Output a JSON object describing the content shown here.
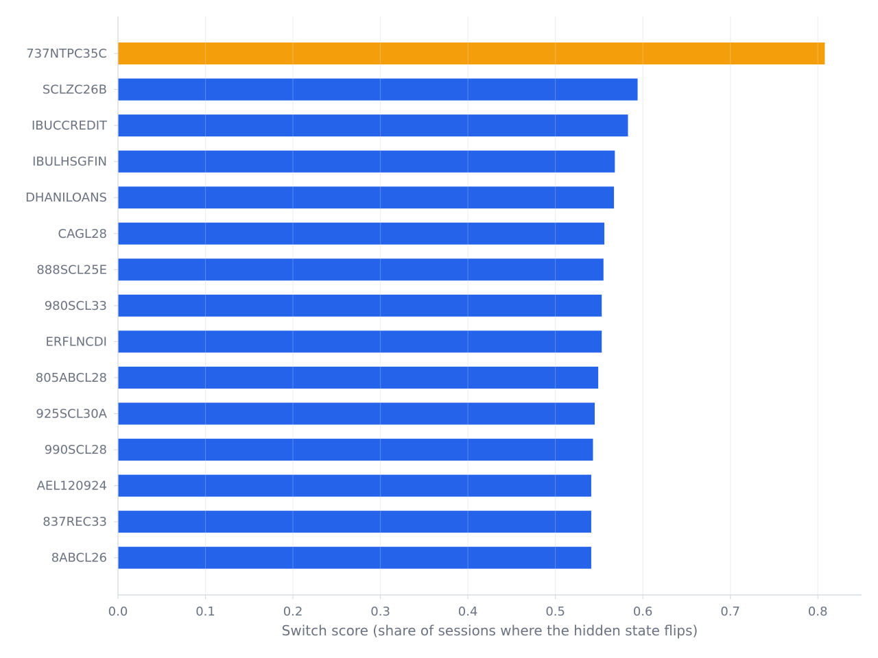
{
  "chart_data": {
    "type": "bar",
    "orientation": "horizontal",
    "categories": [
      "737NTPC35C",
      "SCLZC26B",
      "IBUCCREDIT",
      "IBULHSGFIN",
      "DHANILOANS",
      "CAGL28",
      "888SCL25E",
      "980SCL33",
      "ERFLNCDI",
      "805ABCL28",
      "925SCL30A",
      "990SCL28",
      "AEL120924",
      "837REC33",
      "8ABCL26"
    ],
    "values": [
      0.808,
      0.594,
      0.583,
      0.568,
      0.567,
      0.556,
      0.555,
      0.553,
      0.553,
      0.549,
      0.545,
      0.543,
      0.541,
      0.541,
      0.541
    ],
    "bar_colors": [
      "#f59e0b",
      "#2563eb",
      "#2563eb",
      "#2563eb",
      "#2563eb",
      "#2563eb",
      "#2563eb",
      "#2563eb",
      "#2563eb",
      "#2563eb",
      "#2563eb",
      "#2563eb",
      "#2563eb",
      "#2563eb",
      "#2563eb"
    ],
    "title": "",
    "xlabel": "Switch score (share of sessions where the hidden state flips)",
    "ylabel": "",
    "xlim": [
      0,
      0.85
    ],
    "xticks": [
      0.0,
      0.1,
      0.2,
      0.3,
      0.4,
      0.5,
      0.6,
      0.7,
      0.8
    ],
    "xtick_labels": [
      "0.0",
      "0.1",
      "0.2",
      "0.3",
      "0.4",
      "0.5",
      "0.6",
      "0.7",
      "0.8"
    ],
    "grid": "vertical",
    "legend": "none"
  },
  "colors": {
    "highlight": "#f59e0b",
    "bar": "#2563eb",
    "grid": "#e5e7eb",
    "axis": "#d1d5db",
    "text": "#6b7280"
  }
}
